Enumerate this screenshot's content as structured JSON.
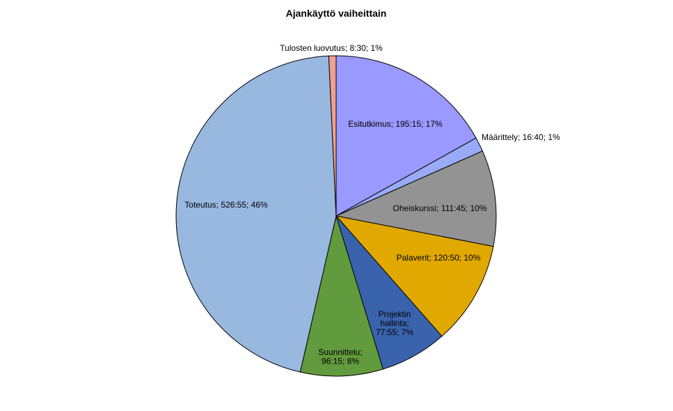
{
  "chart_data": {
    "type": "pie",
    "title": "Ajankäyttö vaiheittain",
    "slices": [
      {
        "name": "Esitutkimus",
        "time": "195:15",
        "percent": "17%",
        "value": 195.25,
        "color": "#9999ff",
        "label_lines": [
          "Esitutkimus;  195:15;  17%"
        ]
      },
      {
        "name": "Määrittely",
        "time": "16:40",
        "percent": "1%",
        "value": 16.667,
        "color": "#99aaf7",
        "label_lines": [
          "Määrittely;  16:40;  1%"
        ]
      },
      {
        "name": "Oheiskurssi",
        "time": "111:45",
        "percent": "10%",
        "value": 111.75,
        "color": "#939393",
        "label_lines": [
          "Oheiskurssi;  111:45;  10%"
        ]
      },
      {
        "name": "Palaverit",
        "time": "120:50",
        "percent": "10%",
        "value": 120.833,
        "color": "#e0a800",
        "label_lines": [
          "Palaverit;  120:50;  10%"
        ]
      },
      {
        "name": "Projektin hallinta",
        "time": "77:55",
        "percent": "7%",
        "value": 77.917,
        "color": "#3a63ad",
        "label_lines": [
          "Projektin",
          "hallinta;",
          "77:55;  7%"
        ]
      },
      {
        "name": "Suunnittelu",
        "time": "96:15",
        "percent": "8%",
        "value": 96.25,
        "color": "#629a3e",
        "label_lines": [
          "Suunnittelu;",
          "96:15;  8%"
        ]
      },
      {
        "name": "Toteutus",
        "time": "526:55",
        "percent": "46%",
        "value": 526.917,
        "color": "#98b8e0",
        "label_lines": [
          "Toteutus;  526:55;  46%"
        ]
      },
      {
        "name": "Tulosten luovutus",
        "time": "8:30",
        "percent": "1%",
        "value": 8.5,
        "color": "#f0a090",
        "label_lines": [
          "Tulosten  luovutus;  8:30;  1%"
        ]
      }
    ],
    "start_angle": "12 o'clock",
    "direction": "clockwise",
    "legend": "none"
  }
}
